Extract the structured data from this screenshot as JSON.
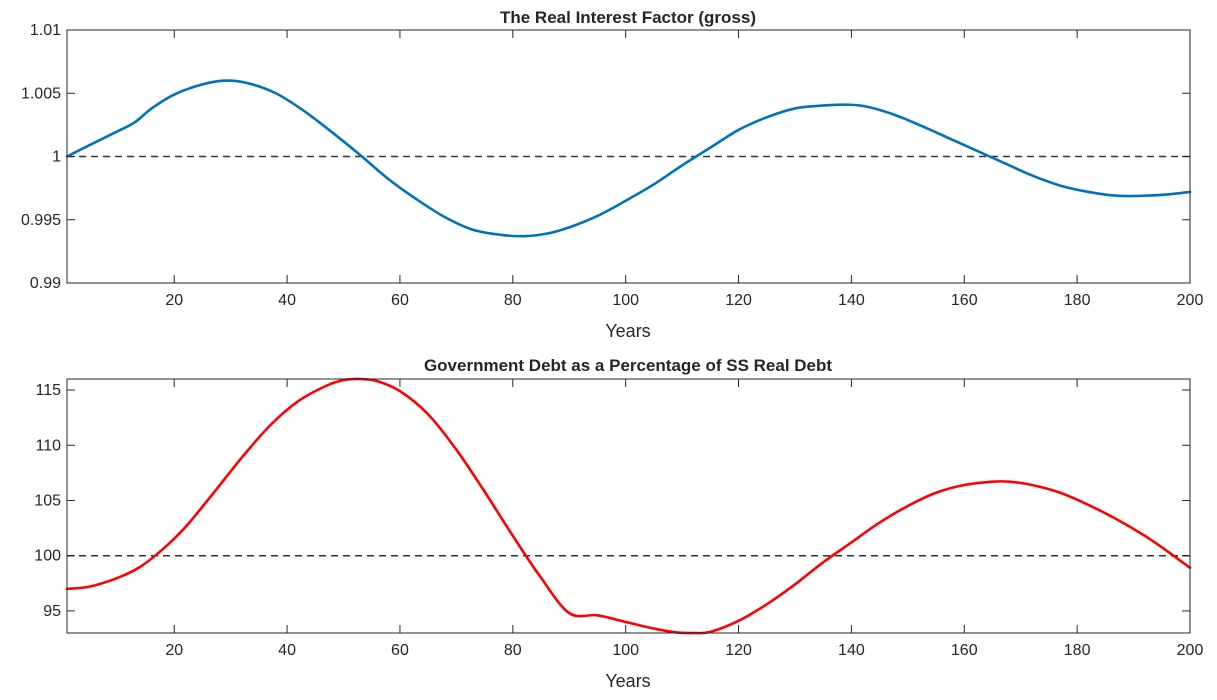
{
  "chart_data": [
    {
      "type": "line",
      "title": "The Real Interest Factor (gross)",
      "xlabel": "Years",
      "ylabel": "",
      "xlim": [
        1,
        200
      ],
      "ylim": [
        0.99,
        1.01
      ],
      "xticks": [
        20,
        40,
        60,
        80,
        100,
        120,
        140,
        160,
        180,
        200
      ],
      "yticks": [
        0.99,
        0.995,
        1,
        1.005,
        1.01
      ],
      "ytick_labels": [
        "0.99",
        "0.995",
        "1",
        "1.005",
        "1.01"
      ],
      "grid": false,
      "reference_line": 1,
      "series": [
        {
          "color": "#0072BD",
          "x": [
            1,
            5,
            10,
            13,
            16,
            20,
            25,
            29,
            33,
            38,
            43,
            48,
            53,
            58,
            63,
            68,
            73,
            78,
            82,
            86,
            90,
            95,
            100,
            105,
            110,
            115,
            120,
            125,
            130,
            134,
            138,
            142,
            147,
            152,
            157,
            162,
            167,
            172,
            177,
            182,
            187,
            192,
            196,
            200
          ],
          "y": [
            1.0,
            1.0009,
            1.002,
            1.0027,
            1.0038,
            1.0049,
            1.0057,
            1.006,
            1.0058,
            1.005,
            1.0036,
            1.0019,
            1.0001,
            0.9982,
            0.9966,
            0.9952,
            0.9942,
            0.9938,
            0.9937,
            0.9939,
            0.9944,
            0.9953,
            0.9965,
            0.9978,
            0.9993,
            1.0007,
            1.0021,
            1.0031,
            1.0038,
            1.004,
            1.0041,
            1.004,
            1.0034,
            1.0025,
            1.0015,
            1.0005,
            0.9995,
            0.9985,
            0.9977,
            0.9972,
            0.9969,
            0.9969,
            0.997,
            0.9972
          ]
        }
      ]
    },
    {
      "type": "line",
      "title": "Government Debt as a Percentage of SS Real Debt",
      "xlabel": "Years",
      "ylabel": "",
      "xlim": [
        1,
        200
      ],
      "ylim": [
        93,
        116
      ],
      "xticks": [
        20,
        40,
        60,
        80,
        100,
        120,
        140,
        160,
        180,
        200
      ],
      "yticks": [
        95,
        100,
        105,
        110,
        115
      ],
      "ytick_labels": [
        "95",
        "100",
        "105",
        "110",
        "115"
      ],
      "grid": false,
      "reference_line": 100,
      "series": [
        {
          "color": "#FF0000",
          "x": [
            1,
            5,
            10,
            14,
            18,
            22,
            27,
            32,
            37,
            42,
            47,
            50,
            53,
            56,
            60,
            65,
            70,
            75,
            80,
            85,
            90,
            95,
            100,
            105,
            109,
            112,
            115,
            120,
            125,
            130,
            135,
            140,
            145,
            150,
            155,
            160,
            165,
            168,
            172,
            177,
            182,
            187,
            192,
            196,
            200
          ],
          "y": [
            97.0,
            97.2,
            98.0,
            99.0,
            100.6,
            102.6,
            105.7,
            108.9,
            111.8,
            114.0,
            115.4,
            115.9,
            116.0,
            115.8,
            114.9,
            112.8,
            109.6,
            105.8,
            101.8,
            98.0,
            94.8,
            94.6,
            94.0,
            93.4,
            93.05,
            93.0,
            93.1,
            94.1,
            95.6,
            97.4,
            99.4,
            101.2,
            103.0,
            104.5,
            105.7,
            106.4,
            106.7,
            106.7,
            106.4,
            105.7,
            104.6,
            103.3,
            101.8,
            100.4,
            98.9
          ]
        }
      ]
    }
  ]
}
